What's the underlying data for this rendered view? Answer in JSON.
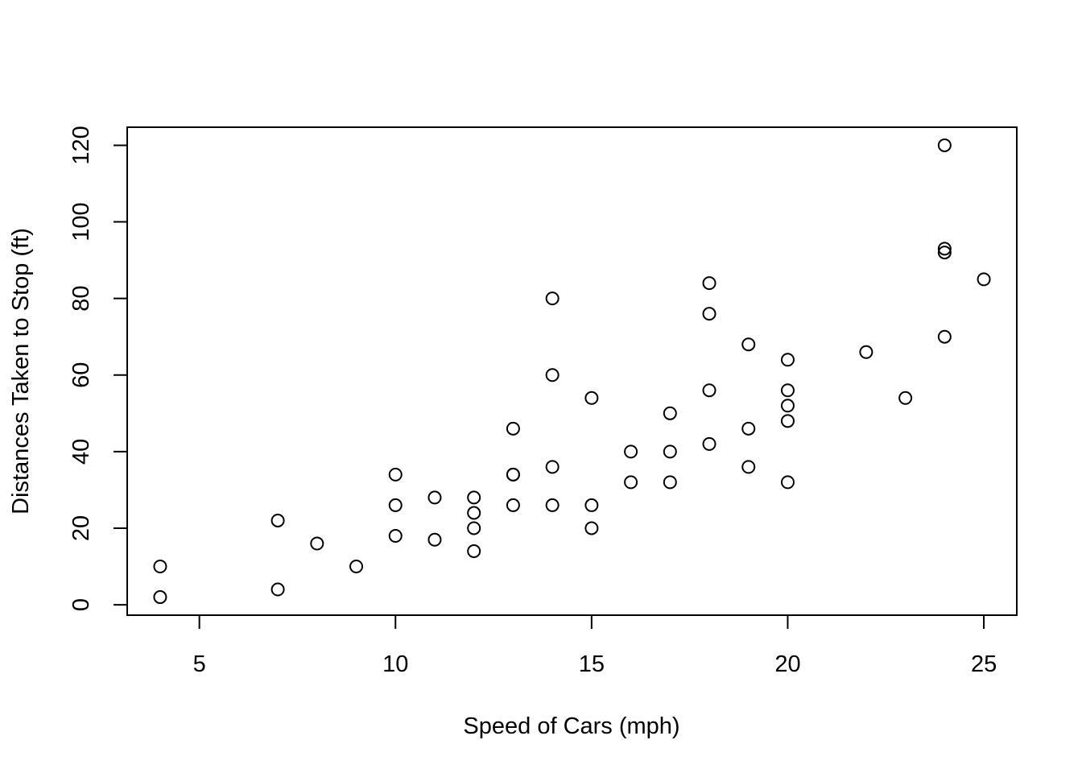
{
  "chart_data": {
    "type": "scatter",
    "title": "",
    "xlabel": "Speed of Cars (mph)",
    "ylabel": "Distances Taken to Stop (ft)",
    "xlim": [
      3.16,
      25.84
    ],
    "ylim": [
      -2.72,
      124.72
    ],
    "xticks": [
      5,
      10,
      15,
      20,
      25
    ],
    "yticks": [
      0,
      20,
      40,
      60,
      80,
      100,
      120
    ],
    "grid": false,
    "legend": "none",
    "marker": "open-circle",
    "colors": {
      "points": "#000000",
      "axes": "#000000",
      "background": "#ffffff"
    },
    "series": [
      {
        "x": [
          4,
          4,
          7,
          7,
          8,
          9,
          10,
          10,
          10,
          11,
          11,
          12,
          12,
          12,
          12,
          13,
          13,
          13,
          13,
          14,
          14,
          14,
          14,
          15,
          15,
          15,
          16,
          16,
          17,
          17,
          17,
          18,
          18,
          18,
          18,
          19,
          19,
          19,
          20,
          20,
          20,
          20,
          20,
          22,
          23,
          24,
          24,
          24,
          24,
          25
        ],
        "y": [
          2,
          10,
          4,
          22,
          16,
          10,
          18,
          26,
          34,
          17,
          28,
          14,
          20,
          24,
          28,
          26,
          34,
          34,
          46,
          26,
          36,
          60,
          80,
          20,
          26,
          54,
          32,
          40,
          32,
          40,
          50,
          42,
          56,
          76,
          84,
          36,
          46,
          68,
          32,
          48,
          52,
          56,
          64,
          66,
          54,
          70,
          92,
          93,
          120,
          85
        ]
      }
    ]
  }
}
